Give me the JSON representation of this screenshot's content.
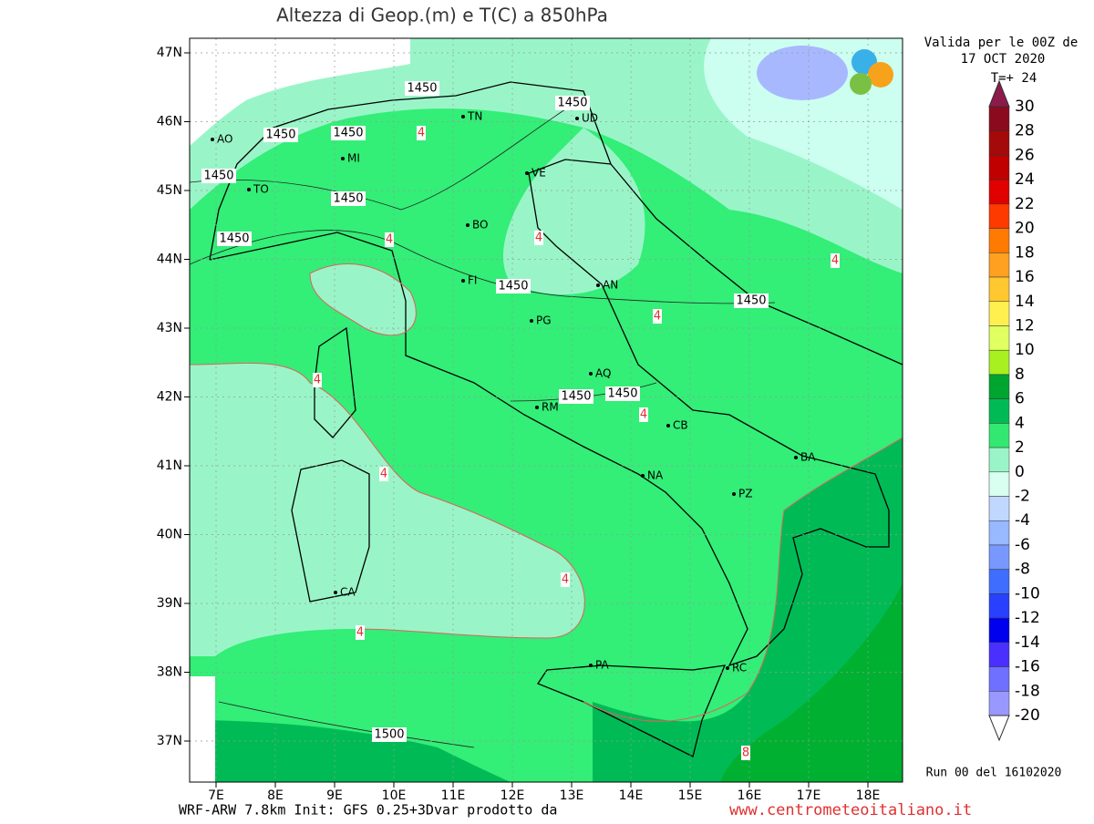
{
  "title": "Altezza di Geop.(m) e T(C) a 850hPa",
  "validity": [
    "Valida per le 00Z de",
    "17 OCT 2020",
    "T=+ 24"
  ],
  "lat_labels": [
    "47N",
    "46N",
    "45N",
    "44N",
    "43N",
    "42N",
    "41N",
    "40N",
    "39N",
    "38N",
    "37N"
  ],
  "lon_labels": [
    "7E",
    "8E",
    "9E",
    "10E",
    "11E",
    "12E",
    "13E",
    "14E",
    "15E",
    "16E",
    "17E",
    "18E"
  ],
  "colorbar": {
    "labels": [
      30,
      28,
      26,
      24,
      22,
      20,
      18,
      16,
      14,
      12,
      10,
      8,
      6,
      4,
      2,
      0,
      -2,
      -4,
      -6,
      -8,
      -10,
      -12,
      -14,
      -16,
      -18,
      -20
    ],
    "colors": [
      "#8c0a1e",
      "#a50a0a",
      "#c00000",
      "#e00000",
      "#ff3a00",
      "#ff7a00",
      "#ffa020",
      "#ffc830",
      "#fff050",
      "#e0ff60",
      "#a8f020",
      "#00a530",
      "#00bb55",
      "#33e870",
      "#99f5c8",
      "#d8fff0",
      "#c0d8ff",
      "#98b8ff",
      "#7898ff",
      "#3f6eff",
      "#2a40ff",
      "#0000ee",
      "#4a30ff",
      "#6f70ff",
      "#9898ff",
      "#a0a0a0"
    ]
  },
  "cities": [
    "AO",
    "TO",
    "MI",
    "TN",
    "UD",
    "VE",
    "BO",
    "FI",
    "AN",
    "PG",
    "AQ",
    "RM",
    "CB",
    "BA",
    "NA",
    "PZ",
    "CA",
    "PA",
    "RC"
  ],
  "contour_labels": [
    1450,
    1450,
    1450,
    1450,
    1450,
    1450,
    1450,
    1450,
    1450,
    1450,
    1450,
    4,
    4,
    4,
    4,
    4,
    4,
    4,
    4,
    4,
    4,
    1500,
    8
  ],
  "run": "Run 00 del 16102020",
  "footer": "WRF-ARW 7.8km Init: GFS 0.25+3Dvar prodotto da",
  "website": "www.centrometeoitaliano.it"
}
